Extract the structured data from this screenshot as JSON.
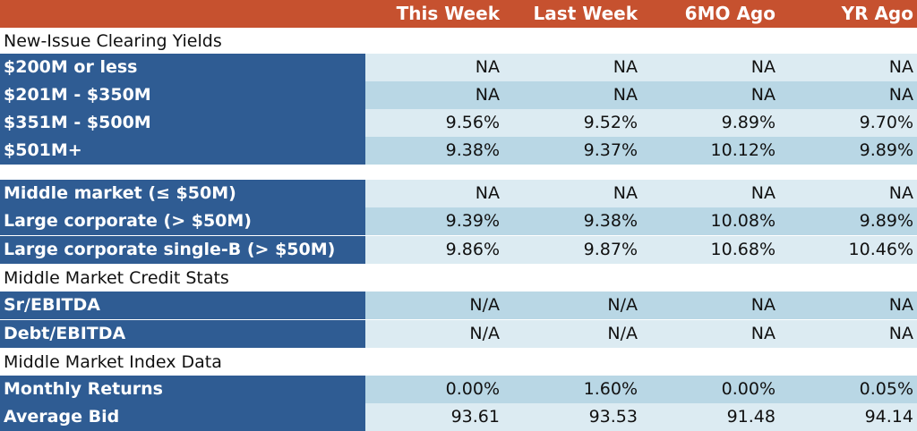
{
  "colors": {
    "header_bg": "#c6512f",
    "label_bg": "#2f5c93",
    "row_light": "#dcebf2",
    "row_dark": "#b9d7e5"
  },
  "header": {
    "columns": [
      "This Week",
      "Last Week",
      "6MO Ago",
      "YR Ago"
    ]
  },
  "sections": {
    "clearing_yields_title": "New-Issue Clearing Yields",
    "credit_stats_title": "Middle Market Credit Stats",
    "index_data_title": "Middle Market Index Data"
  },
  "clearing_yields": [
    {
      "label": "$200M or less",
      "values": [
        "NA",
        "NA",
        "NA",
        "NA"
      ]
    },
    {
      "label": "$201M - $350M",
      "values": [
        "NA",
        "NA",
        "NA",
        "NA"
      ]
    },
    {
      "label": "$351M - $500M",
      "values": [
        "9.56%",
        "9.52%",
        "9.89%",
        "9.70%"
      ]
    },
    {
      "label": "$501M+",
      "values": [
        "9.38%",
        "9.37%",
        "10.12%",
        "9.89%"
      ]
    }
  ],
  "market_yields": [
    {
      "label": "Middle market (≤ $50M)",
      "values": [
        "NA",
        "NA",
        "NA",
        "NA"
      ]
    },
    {
      "label": "Large corporate (> $50M)",
      "values": [
        "9.39%",
        "9.38%",
        "10.08%",
        "9.89%"
      ]
    },
    {
      "label": "Large corporate single-B (> $50M)",
      "values": [
        "9.86%",
        "9.87%",
        "10.68%",
        "10.46%"
      ]
    }
  ],
  "credit_stats": [
    {
      "label": "Sr/EBITDA",
      "values": [
        "N/A",
        "N/A",
        "NA",
        "NA"
      ]
    },
    {
      "label": "Debt/EBITDA",
      "values": [
        "N/A",
        "N/A",
        "NA",
        "NA"
      ]
    }
  ],
  "index_data": [
    {
      "label": "Monthly Returns",
      "values": [
        "0.00%",
        "1.60%",
        "0.00%",
        "0.05%"
      ]
    },
    {
      "label": "Average Bid",
      "values": [
        "93.61",
        "93.53",
        "91.48",
        "94.14"
      ]
    }
  ]
}
